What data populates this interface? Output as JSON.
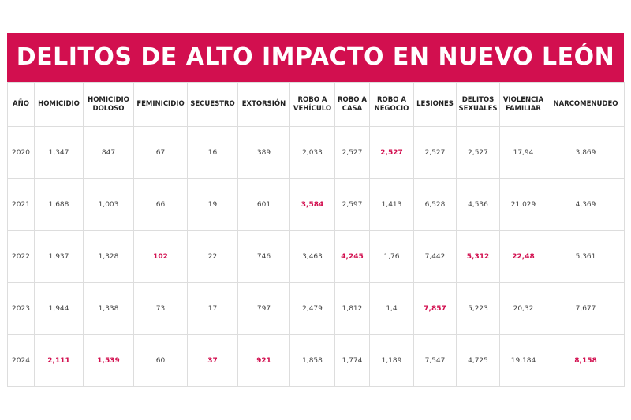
{
  "title": "DELITOS DE ALTO IMPACTO EN NUEVO LEÓN",
  "table": {
    "headers": [
      "AÑO",
      "HOMICIDIO",
      "HOMICIDIO DOLOSO",
      "FEMINICIDIO",
      "SECUESTRO",
      "EXTORSIÓN",
      "ROBO A VEHÍCULO",
      "ROBO A CASA",
      "ROBO A NEGOCIO",
      "LESIONES",
      "DELITOS SEXUALES",
      "VIOLENCIA FAMILIAR",
      "NARCOMENUDEO"
    ],
    "rows": [
      [
        "2020",
        "1,347",
        "847",
        "67",
        "16",
        "389",
        "2,033",
        "2,527",
        "2,527",
        "2,527",
        "2,527",
        "17,94",
        "3,869"
      ],
      [
        "2021",
        "1,688",
        "1,003",
        "66",
        "19",
        "601",
        "3,584",
        "2,597",
        "1,413",
        "6,528",
        "4,536",
        "21,029",
        "4,369"
      ],
      [
        "2022",
        "1,937",
        "1,328",
        "102",
        "22",
        "746",
        "3,463",
        "4,245",
        "1,76",
        "7,442",
        "5,312",
        "22,48",
        "5,361"
      ],
      [
        "2023",
        "1,944",
        "1,338",
        "73",
        "17",
        "797",
        "2,479",
        "1,812",
        "1,4",
        "7,857",
        "5,223",
        "20,32",
        "7,677"
      ],
      [
        "2024",
        "2,111",
        "1,539",
        "60",
        "37",
        "921",
        "1,858",
        "1,774",
        "1,189",
        "7,547",
        "4,725",
        "19,184",
        "8,158"
      ]
    ]
  }
}
